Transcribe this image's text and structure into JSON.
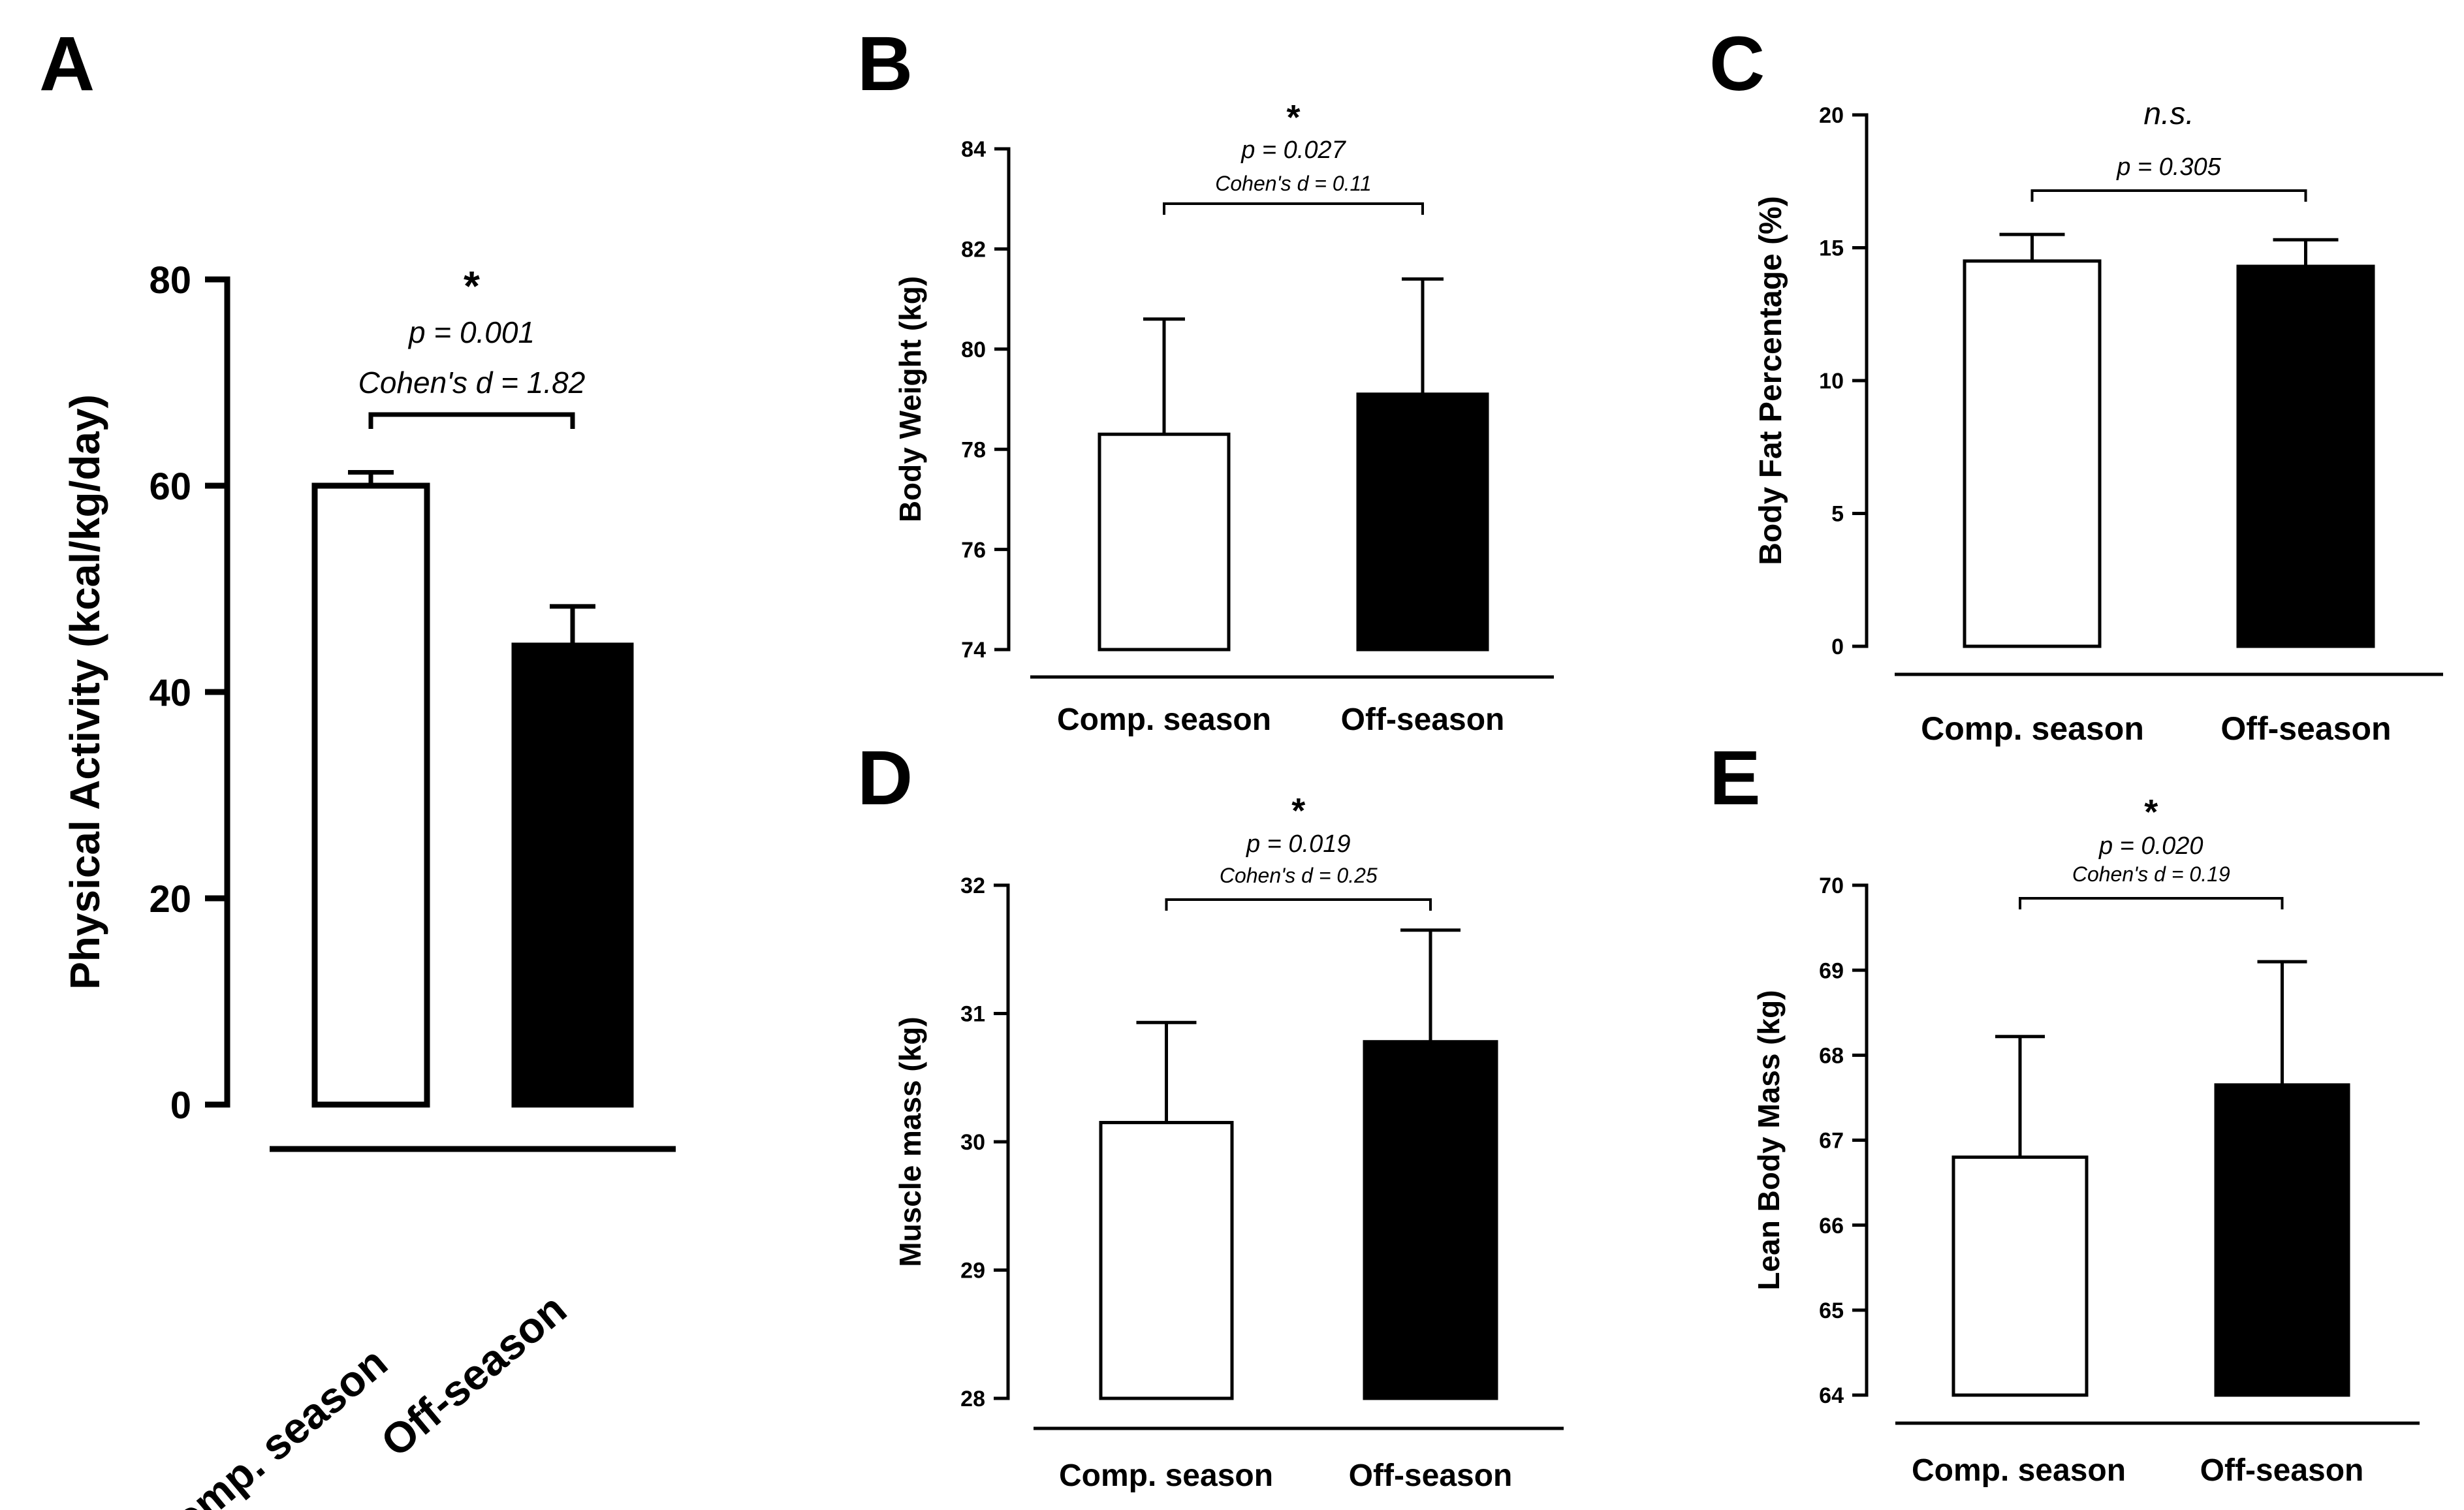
{
  "chart_data": [
    {
      "panel": "A",
      "type": "bar",
      "ylabel": "Physical Activity (kcal/kg/day)",
      "ylim": [
        0,
        80
      ],
      "yticks": [
        0,
        20,
        40,
        60,
        80
      ],
      "categories": [
        "Comp. season",
        "Off-season"
      ],
      "values": [
        60,
        44.5
      ],
      "errors": [
        1.3,
        3.8
      ],
      "fills": [
        "#ffffff",
        "#000000"
      ],
      "significance": "*",
      "p_text": "p = 0.001",
      "d_text": "Cohen's d = 1.82"
    },
    {
      "panel": "B",
      "type": "bar",
      "ylabel": "Body Weight (kg)",
      "ylim": [
        74,
        84
      ],
      "yticks": [
        74,
        76,
        78,
        80,
        82,
        84
      ],
      "categories": [
        "Comp. season",
        "Off-season"
      ],
      "values": [
        78.3,
        79.1
      ],
      "errors": [
        2.3,
        2.3
      ],
      "fills": [
        "#ffffff",
        "#000000"
      ],
      "significance": "*",
      "p_text": "p = 0.027",
      "d_text": "Cohen's d = 0.11"
    },
    {
      "panel": "C",
      "type": "bar",
      "ylabel": "Body Fat Percentage (%)",
      "ylim": [
        0,
        20
      ],
      "yticks": [
        0,
        5,
        10,
        15,
        20
      ],
      "categories": [
        "Comp. season",
        "Off-season"
      ],
      "values": [
        14.5,
        14.3
      ],
      "errors": [
        1.0,
        1.0
      ],
      "fills": [
        "#ffffff",
        "#000000"
      ],
      "significance": "n.s.",
      "p_text": "p = 0.305",
      "d_text": ""
    },
    {
      "panel": "D",
      "type": "bar",
      "ylabel": "Muscle mass (kg)",
      "ylim": [
        28,
        32
      ],
      "yticks": [
        28,
        29,
        30,
        31,
        32
      ],
      "categories": [
        "Comp. season",
        "Off-season"
      ],
      "values": [
        30.15,
        30.78
      ],
      "errors": [
        0.78,
        0.87
      ],
      "fills": [
        "#ffffff",
        "#000000"
      ],
      "significance": "*",
      "p_text": "p = 0.019",
      "d_text": "Cohen's d = 0.25"
    },
    {
      "panel": "E",
      "type": "bar",
      "ylabel": "Lean Body Mass (kg)",
      "ylim": [
        64,
        70
      ],
      "yticks": [
        64,
        65,
        66,
        67,
        68,
        69,
        70
      ],
      "categories": [
        "Comp. season",
        "Off-season"
      ],
      "values": [
        66.8,
        67.65
      ],
      "errors": [
        1.42,
        1.45
      ],
      "fills": [
        "#ffffff",
        "#000000"
      ],
      "significance": "*",
      "p_text": "p = 0.020",
      "d_text": "Cohen's d = 0.19"
    }
  ]
}
